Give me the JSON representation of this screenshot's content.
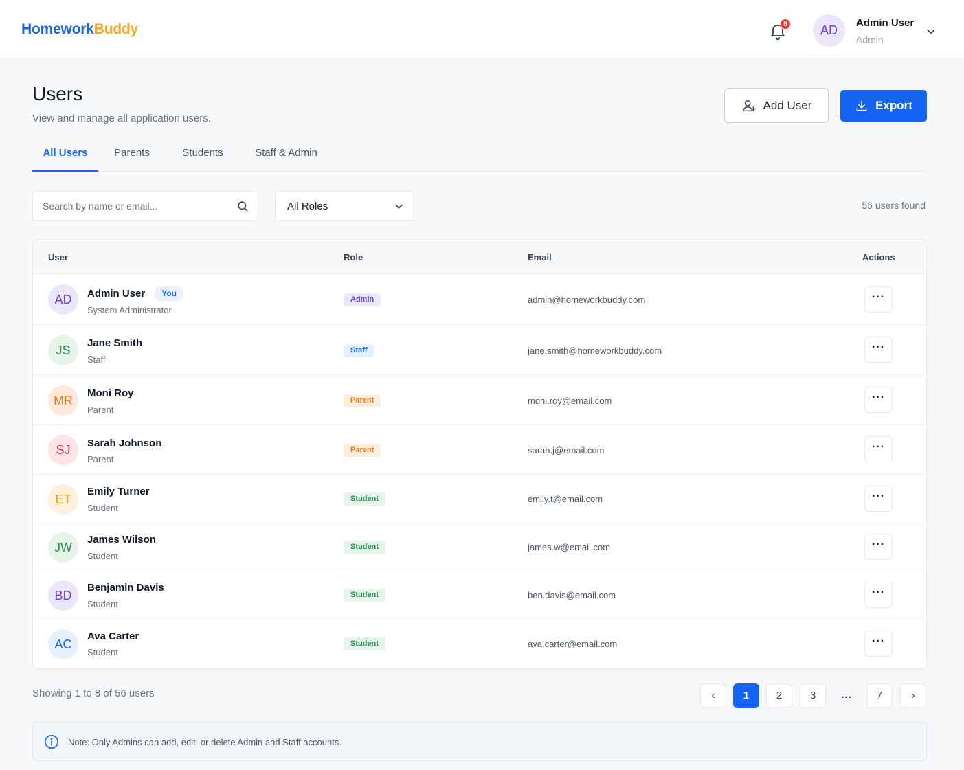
{
  "app": {
    "logo_part1": "Homework",
    "logo_part2": "Buddy",
    "notification_count": "8"
  },
  "user_menu": {
    "initials": "AD",
    "name": "Admin User",
    "role": "Admin"
  },
  "page": {
    "title": "Users",
    "subtitle": "View and manage all application users."
  },
  "actions": {
    "add_label": "Add User",
    "export_label": "Export"
  },
  "tabs": [
    {
      "label": "All Users",
      "active": true
    },
    {
      "label": "Parents"
    },
    {
      "label": "Students"
    },
    {
      "label": "Staff & Admin"
    }
  ],
  "filters": {
    "search_placeholder": "Search by name or email...",
    "role_selected": "All Roles",
    "results": "56 users found"
  },
  "table": {
    "headers": {
      "user": "User",
      "role": "Role",
      "email": "Email",
      "actions": "Actions"
    },
    "action_label": "···",
    "rows": [
      {
        "initials": "AD",
        "name": "Admin User",
        "you": "You",
        "subtitle": "System Administrator",
        "role": "Admin",
        "email": "admin@homeworkbuddy.com"
      },
      {
        "initials": "JS",
        "name": "Jane Smith",
        "subtitle": "Staff",
        "role": "Staff",
        "email": "jane.smith@homeworkbuddy.com"
      },
      {
        "initials": "MR",
        "name": "Moni Roy",
        "subtitle": "Parent",
        "role": "Parent",
        "email": "moni.roy@email.com"
      },
      {
        "initials": "SJ",
        "name": "Sarah Johnson",
        "subtitle": "Parent",
        "role": "Parent",
        "email": "sarah.j@email.com"
      },
      {
        "initials": "ET",
        "name": "Emily Turner",
        "subtitle": "Student",
        "role": "Student",
        "email": "emily.t@email.com"
      },
      {
        "initials": "JW",
        "name": "James Wilson",
        "subtitle": "Student",
        "role": "Student",
        "email": "james.w@email.com"
      },
      {
        "initials": "BD",
        "name": "Benjamin Davis",
        "subtitle": "Student",
        "role": "Student",
        "email": "ben.davis@email.com"
      },
      {
        "initials": "AC",
        "name": "Ava Carter",
        "subtitle": "Student",
        "role": "Student",
        "email": "ava.carter@email.com"
      }
    ]
  },
  "pagination": {
    "showing": "Showing 1 to 8 of 56 users",
    "prev": "‹",
    "pages": [
      "1",
      "2",
      "3"
    ],
    "ellipsis": "...",
    "last": "7",
    "next": "›",
    "current": "1"
  },
  "note": {
    "text": "Note: Only Admins can add, edit, or delete Admin and Staff accounts."
  },
  "colors": {
    "accent": "#1463f3",
    "logo_accent": "#f5a623",
    "role_admin": "#6b3fd8",
    "role_staff": "#1463f3",
    "role_parent": "#ea7a1d",
    "role_student": "#1e8a4c"
  }
}
